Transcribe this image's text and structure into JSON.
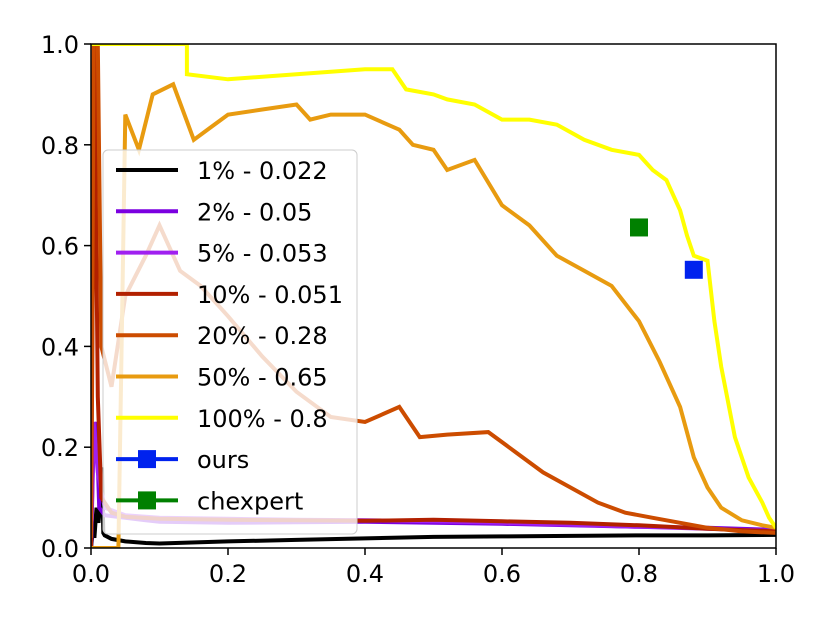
{
  "chart_data": {
    "type": "line",
    "title": "",
    "xlabel": "",
    "ylabel": "",
    "xlim": [
      0,
      1
    ],
    "ylim": [
      0,
      1
    ],
    "x_ticks": [
      "0.0",
      "0.2",
      "0.4",
      "0.6",
      "0.8",
      "1.0"
    ],
    "y_ticks": [
      "0.0",
      "0.2",
      "0.4",
      "0.6",
      "0.8",
      "1.0"
    ],
    "grid": false,
    "legend_position": "center-left",
    "series": [
      {
        "name": "1% - 0.022",
        "color": "#000000",
        "points": [
          [
            0.0,
            0.0
          ],
          [
            0.003,
            0.04
          ],
          [
            0.005,
            0.02
          ],
          [
            0.008,
            0.08
          ],
          [
            0.011,
            0.05
          ],
          [
            0.014,
            0.1
          ],
          [
            0.016,
            0.16
          ],
          [
            0.018,
            0.03
          ],
          [
            0.02,
            0.025
          ],
          [
            0.03,
            0.018
          ],
          [
            0.05,
            0.013
          ],
          [
            0.08,
            0.01
          ],
          [
            0.1,
            0.009
          ],
          [
            0.2,
            0.013
          ],
          [
            0.3,
            0.016
          ],
          [
            0.4,
            0.019
          ],
          [
            0.5,
            0.022
          ],
          [
            0.6,
            0.023
          ],
          [
            0.7,
            0.024
          ],
          [
            0.8,
            0.025
          ],
          [
            0.9,
            0.025
          ],
          [
            1.0,
            0.026
          ]
        ]
      },
      {
        "name": "2% - 0.05",
        "color": "#7B00E0",
        "points": [
          [
            0.0,
            0.0
          ],
          [
            0.004,
            0.22
          ],
          [
            0.008,
            0.25
          ],
          [
            0.012,
            0.08
          ],
          [
            0.02,
            0.065
          ],
          [
            0.05,
            0.06
          ],
          [
            0.08,
            0.055
          ],
          [
            0.1,
            0.052
          ],
          [
            0.2,
            0.05
          ],
          [
            0.3,
            0.051
          ],
          [
            0.4,
            0.052
          ],
          [
            0.5,
            0.05
          ],
          [
            0.6,
            0.048
          ],
          [
            0.7,
            0.045
          ],
          [
            0.8,
            0.042
          ],
          [
            0.9,
            0.04
          ],
          [
            1.0,
            0.036
          ]
        ]
      },
      {
        "name": "5% - 0.053",
        "color": "#A020F0",
        "points": [
          [
            0.0,
            0.0
          ],
          [
            0.004,
            0.25
          ],
          [
            0.01,
            0.15
          ],
          [
            0.02,
            0.08
          ],
          [
            0.05,
            0.065
          ],
          [
            0.1,
            0.06
          ],
          [
            0.2,
            0.058
          ],
          [
            0.3,
            0.056
          ],
          [
            0.4,
            0.055
          ],
          [
            0.5,
            0.053
          ],
          [
            0.6,
            0.05
          ],
          [
            0.7,
            0.046
          ],
          [
            0.8,
            0.042
          ],
          [
            0.9,
            0.038
          ],
          [
            1.0,
            0.034
          ]
        ]
      },
      {
        "name": "10% - 0.051",
        "color": "#B22000",
        "points": [
          [
            0.0,
            0.0
          ],
          [
            0.005,
            1.0
          ],
          [
            0.01,
            0.3
          ],
          [
            0.015,
            0.1
          ],
          [
            0.03,
            0.07
          ],
          [
            0.05,
            0.062
          ],
          [
            0.1,
            0.058
          ],
          [
            0.2,
            0.056
          ],
          [
            0.3,
            0.055
          ],
          [
            0.4,
            0.054
          ],
          [
            0.5,
            0.056
          ],
          [
            0.6,
            0.053
          ],
          [
            0.7,
            0.05
          ],
          [
            0.8,
            0.045
          ],
          [
            0.9,
            0.038
          ],
          [
            1.0,
            0.033
          ]
        ]
      },
      {
        "name": "20% - 0.28",
        "color": "#CC4C00",
        "points": [
          [
            0.0,
            0.02
          ],
          [
            0.004,
            1.0
          ],
          [
            0.01,
            1.0
          ],
          [
            0.015,
            0.4
          ],
          [
            0.03,
            0.32
          ],
          [
            0.05,
            0.5
          ],
          [
            0.08,
            0.58
          ],
          [
            0.1,
            0.64
          ],
          [
            0.13,
            0.55
          ],
          [
            0.16,
            0.52
          ],
          [
            0.2,
            0.46
          ],
          [
            0.25,
            0.38
          ],
          [
            0.3,
            0.31
          ],
          [
            0.35,
            0.26
          ],
          [
            0.4,
            0.25
          ],
          [
            0.45,
            0.28
          ],
          [
            0.48,
            0.22
          ],
          [
            0.52,
            0.225
          ],
          [
            0.58,
            0.23
          ],
          [
            0.62,
            0.19
          ],
          [
            0.66,
            0.15
          ],
          [
            0.7,
            0.12
          ],
          [
            0.74,
            0.09
          ],
          [
            0.78,
            0.07
          ],
          [
            0.82,
            0.06
          ],
          [
            0.86,
            0.05
          ],
          [
            0.9,
            0.04
          ],
          [
            0.95,
            0.033
          ],
          [
            1.0,
            0.03
          ]
        ]
      },
      {
        "name": "50% - 0.65",
        "color": "#E89B10",
        "points": [
          [
            0.0,
            0.0
          ],
          [
            0.02,
            0.0
          ],
          [
            0.04,
            0.0
          ],
          [
            0.05,
            0.86
          ],
          [
            0.07,
            0.79
          ],
          [
            0.09,
            0.9
          ],
          [
            0.12,
            0.92
          ],
          [
            0.15,
            0.81
          ],
          [
            0.2,
            0.86
          ],
          [
            0.25,
            0.87
          ],
          [
            0.3,
            0.88
          ],
          [
            0.32,
            0.85
          ],
          [
            0.35,
            0.86
          ],
          [
            0.4,
            0.86
          ],
          [
            0.45,
            0.83
          ],
          [
            0.47,
            0.8
          ],
          [
            0.5,
            0.79
          ],
          [
            0.52,
            0.75
          ],
          [
            0.56,
            0.77
          ],
          [
            0.6,
            0.68
          ],
          [
            0.64,
            0.64
          ],
          [
            0.68,
            0.58
          ],
          [
            0.72,
            0.55
          ],
          [
            0.76,
            0.52
          ],
          [
            0.8,
            0.45
          ],
          [
            0.83,
            0.37
          ],
          [
            0.86,
            0.28
          ],
          [
            0.88,
            0.18
          ],
          [
            0.9,
            0.12
          ],
          [
            0.92,
            0.08
          ],
          [
            0.95,
            0.055
          ],
          [
            0.98,
            0.045
          ],
          [
            1.0,
            0.04
          ]
        ]
      },
      {
        "name": "100% - 0.8",
        "color": "#FFFF00",
        "points": [
          [
            0.0,
            1.0
          ],
          [
            0.14,
            1.0
          ],
          [
            0.14,
            0.94
          ],
          [
            0.2,
            0.93
          ],
          [
            0.3,
            0.94
          ],
          [
            0.4,
            0.95
          ],
          [
            0.44,
            0.95
          ],
          [
            0.46,
            0.91
          ],
          [
            0.5,
            0.9
          ],
          [
            0.52,
            0.89
          ],
          [
            0.56,
            0.88
          ],
          [
            0.6,
            0.85
          ],
          [
            0.64,
            0.85
          ],
          [
            0.68,
            0.84
          ],
          [
            0.72,
            0.81
          ],
          [
            0.76,
            0.79
          ],
          [
            0.8,
            0.78
          ],
          [
            0.82,
            0.75
          ],
          [
            0.84,
            0.73
          ],
          [
            0.86,
            0.67
          ],
          [
            0.87,
            0.62
          ],
          [
            0.88,
            0.58
          ],
          [
            0.9,
            0.57
          ],
          [
            0.91,
            0.45
          ],
          [
            0.92,
            0.36
          ],
          [
            0.94,
            0.22
          ],
          [
            0.96,
            0.14
          ],
          [
            0.98,
            0.09
          ],
          [
            0.99,
            0.06
          ],
          [
            1.0,
            0.04
          ]
        ]
      }
    ],
    "markers": [
      {
        "name": "ours",
        "color": "#0022EE",
        "x": 0.88,
        "y": 0.552
      },
      {
        "name": "chexpert",
        "color": "#008000",
        "x": 0.8,
        "y": 0.636
      }
    ]
  }
}
